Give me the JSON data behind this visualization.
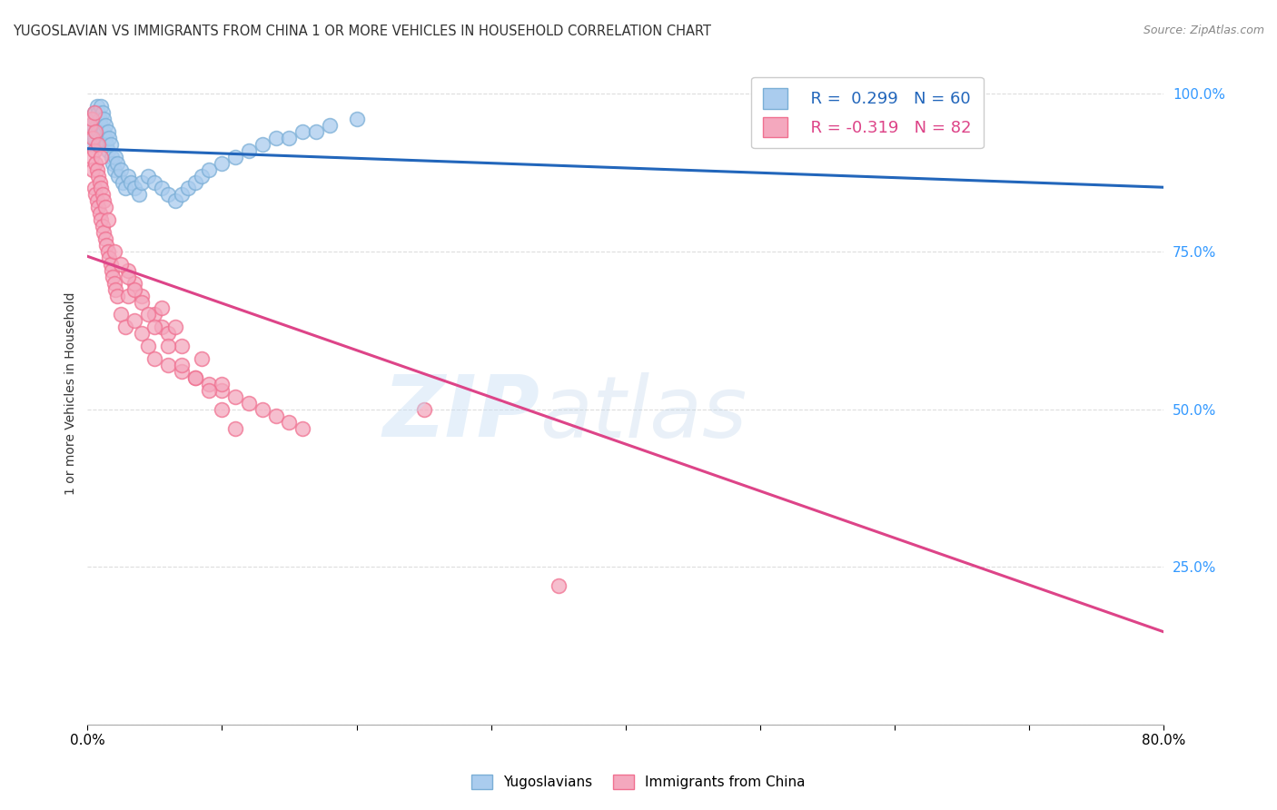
{
  "title": "YUGOSLAVIAN VS IMMIGRANTS FROM CHINA 1 OR MORE VEHICLES IN HOUSEHOLD CORRELATION CHART",
  "source": "Source: ZipAtlas.com",
  "ylabel": "1 or more Vehicles in Household",
  "xlim": [
    0.0,
    80.0
  ],
  "ylim": [
    0.0,
    105.0
  ],
  "legend_r1": "R =  0.299",
  "legend_n1": "N = 60",
  "legend_r2": "R = -0.319",
  "legend_n2": "N = 82",
  "label1": "Yugoslavians",
  "label2": "Immigrants from China",
  "color1": "#aaccee",
  "color2": "#f4a8be",
  "color1_edge": "#7aaed6",
  "color2_edge": "#f07090",
  "trendline1_color": "#2266bb",
  "trendline2_color": "#dd4488",
  "background_color": "#ffffff",
  "grid_color": "#dddddd",
  "yugoslav_x": [
    0.3,
    0.4,
    0.5,
    0.5,
    0.6,
    0.6,
    0.7,
    0.7,
    0.8,
    0.8,
    0.9,
    0.9,
    1.0,
    1.0,
    1.0,
    1.1,
    1.1,
    1.2,
    1.2,
    1.3,
    1.3,
    1.4,
    1.5,
    1.5,
    1.6,
    1.7,
    1.8,
    1.9,
    2.0,
    2.1,
    2.2,
    2.3,
    2.5,
    2.6,
    2.8,
    3.0,
    3.2,
    3.5,
    3.8,
    4.0,
    4.5,
    5.0,
    5.5,
    6.0,
    6.5,
    7.0,
    7.5,
    8.0,
    8.5,
    9.0,
    10.0,
    11.0,
    12.0,
    13.0,
    14.0,
    15.0,
    16.0,
    17.0,
    18.0,
    20.0
  ],
  "yugoslav_y": [
    92,
    95,
    93,
    97,
    94,
    96,
    95,
    98,
    94,
    97,
    93,
    96,
    92,
    95,
    98,
    93,
    97,
    94,
    96,
    93,
    95,
    92,
    91,
    94,
    93,
    92,
    90,
    89,
    88,
    90,
    89,
    87,
    88,
    86,
    85,
    87,
    86,
    85,
    84,
    86,
    87,
    86,
    85,
    84,
    83,
    84,
    85,
    86,
    87,
    88,
    89,
    90,
    91,
    92,
    93,
    93,
    94,
    94,
    95,
    96
  ],
  "china_x": [
    0.2,
    0.3,
    0.3,
    0.4,
    0.4,
    0.5,
    0.5,
    0.5,
    0.6,
    0.6,
    0.6,
    0.7,
    0.7,
    0.8,
    0.8,
    0.8,
    0.9,
    0.9,
    1.0,
    1.0,
    1.0,
    1.1,
    1.1,
    1.2,
    1.2,
    1.3,
    1.3,
    1.4,
    1.5,
    1.5,
    1.6,
    1.7,
    1.8,
    1.9,
    2.0,
    2.1,
    2.2,
    2.5,
    2.8,
    3.0,
    3.5,
    4.0,
    4.5,
    5.0,
    5.5,
    6.0,
    7.0,
    8.0,
    9.0,
    10.0,
    11.0,
    12.0,
    13.0,
    14.0,
    15.0,
    16.0,
    3.0,
    3.5,
    4.0,
    5.0,
    6.0,
    7.0,
    5.5,
    6.5,
    8.5,
    10.0,
    2.0,
    2.5,
    3.0,
    3.5,
    4.0,
    4.5,
    5.0,
    6.0,
    7.0,
    8.0,
    9.0,
    10.0,
    11.0,
    59.0,
    35.0,
    25.0
  ],
  "china_y": [
    95,
    90,
    96,
    88,
    93,
    85,
    91,
    97,
    84,
    89,
    94,
    83,
    88,
    82,
    87,
    92,
    81,
    86,
    80,
    85,
    90,
    79,
    84,
    78,
    83,
    77,
    82,
    76,
    75,
    80,
    74,
    73,
    72,
    71,
    70,
    69,
    68,
    65,
    63,
    68,
    64,
    62,
    60,
    58,
    63,
    57,
    56,
    55,
    54,
    53,
    52,
    51,
    50,
    49,
    48,
    47,
    72,
    70,
    68,
    65,
    62,
    60,
    66,
    63,
    58,
    54,
    75,
    73,
    71,
    69,
    67,
    65,
    63,
    60,
    57,
    55,
    53,
    50,
    47,
    100,
    22,
    50
  ]
}
